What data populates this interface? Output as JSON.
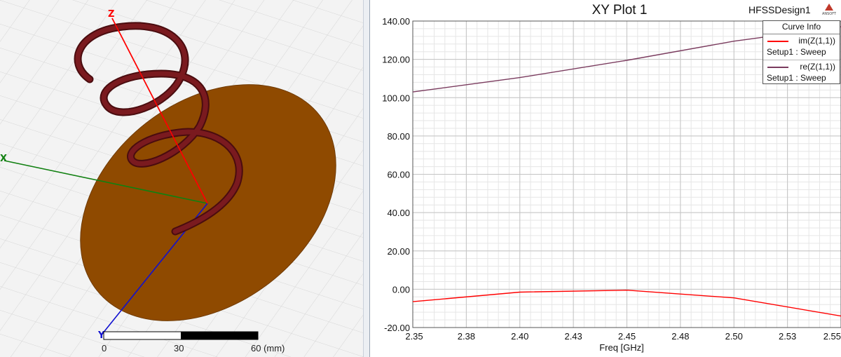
{
  "viewport": {
    "axes": {
      "z_label": "Z",
      "x_label": "X",
      "y_label": "Y"
    },
    "scale_bar": {
      "labels": [
        "0",
        "30",
        "60 (mm)"
      ]
    },
    "colors": {
      "helix": "#6b1519",
      "ground": "#8f4a00",
      "z_axis": "#ff0000",
      "x_axis": "#118011",
      "y_axis": "#1010d0",
      "grid_bg": "#f1f1f1"
    }
  },
  "plot": {
    "title": "XY Plot 1",
    "design_name": "HFSSDesign1",
    "logo_text": "ANSOFT",
    "legend": {
      "header": "Curve Info",
      "entries": [
        {
          "name": "im(Z(1,1))",
          "setup": "Setup1 : Sweep",
          "color": "#ff0000"
        },
        {
          "name": "re(Z(1,1))",
          "setup": "Setup1 : Sweep",
          "color": "#7a3b5e"
        }
      ]
    }
  },
  "chart_data": {
    "type": "line",
    "title": "XY Plot 1",
    "xlabel": "Freq [GHz]",
    "ylabel": "",
    "xlim": [
      2.35,
      2.55
    ],
    "ylim": [
      -20,
      140
    ],
    "x_ticks": [
      "2.35",
      "2.38",
      "2.40",
      "2.43",
      "2.45",
      "2.48",
      "2.50",
      "2.53",
      "2.55"
    ],
    "y_ticks": [
      "140.00",
      "120.00",
      "100.00",
      "80.00",
      "60.00",
      "40.00",
      "20.00",
      "0.00",
      "-20.00"
    ],
    "grid": true,
    "legend_position": "top-right",
    "series": [
      {
        "name": "im(Z(1,1))",
        "color": "#ff0000",
        "x": [
          2.35,
          2.4,
          2.45,
          2.5,
          2.55
        ],
        "y": [
          -6.5,
          -1.5,
          -0.5,
          -4.5,
          -14.0
        ]
      },
      {
        "name": "re(Z(1,1))",
        "color": "#7a3b5e",
        "x": [
          2.35,
          2.4,
          2.45,
          2.5,
          2.55
        ],
        "y": [
          103.0,
          110.5,
          119.5,
          129.5,
          137.0
        ]
      }
    ]
  }
}
